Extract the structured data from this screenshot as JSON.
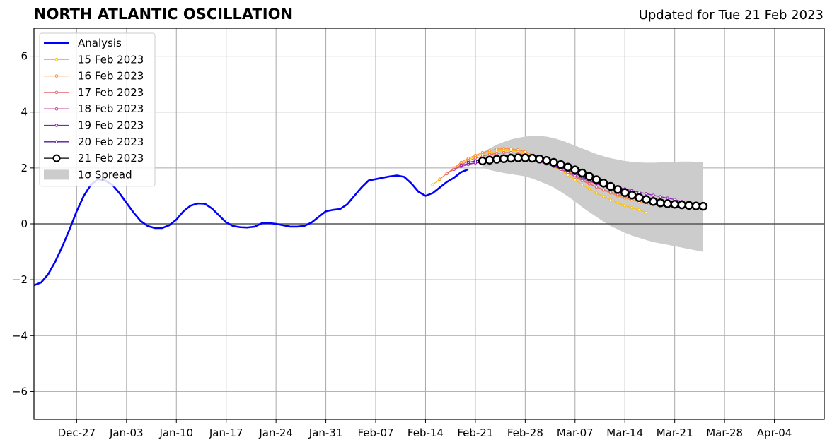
{
  "chart_data": {
    "type": "line",
    "title": "NORTH ATLANTIC OSCILLATION",
    "subtitle": "Updated for Tue 21 Feb 2023",
    "xlabel": "",
    "ylabel": "",
    "xlim": [
      "2022-12-21",
      "2023-04-11"
    ],
    "ylim": [
      -7,
      7
    ],
    "x_ticks": [
      {
        "date": "2022-12-27",
        "label": "Dec-27"
      },
      {
        "date": "2023-01-03",
        "label": "Jan-03"
      },
      {
        "date": "2023-01-10",
        "label": "Jan-10"
      },
      {
        "date": "2023-01-17",
        "label": "Jan-17"
      },
      {
        "date": "2023-01-24",
        "label": "Jan-24"
      },
      {
        "date": "2023-01-31",
        "label": "Jan-31"
      },
      {
        "date": "2023-02-07",
        "label": "Feb-07"
      },
      {
        "date": "2023-02-14",
        "label": "Feb-14"
      },
      {
        "date": "2023-02-21",
        "label": "Feb-21"
      },
      {
        "date": "2023-02-28",
        "label": "Feb-28"
      },
      {
        "date": "2023-03-07",
        "label": "Mar-07"
      },
      {
        "date": "2023-03-14",
        "label": "Mar-14"
      },
      {
        "date": "2023-03-21",
        "label": "Mar-21"
      },
      {
        "date": "2023-03-28",
        "label": "Mar-28"
      },
      {
        "date": "2023-04-04",
        "label": "Apr-04"
      }
    ],
    "y_ticks": [
      {
        "value": 6,
        "label": "6"
      },
      {
        "value": 4,
        "label": "4"
      },
      {
        "value": 2,
        "label": "2"
      },
      {
        "value": 0,
        "label": "0"
      },
      {
        "value": -2,
        "label": "−2"
      },
      {
        "value": -4,
        "label": "−4"
      },
      {
        "value": -6,
        "label": "−6"
      }
    ],
    "grid": true,
    "legend_position": "top-left",
    "analysis": {
      "name": "Analysis",
      "color": "#0000ff",
      "start_date": "2022-12-21",
      "values": [
        -2.2,
        -2.1,
        -1.8,
        -1.35,
        -0.8,
        -0.2,
        0.45,
        1.0,
        1.4,
        1.6,
        1.55,
        1.4,
        1.1,
        0.75,
        0.4,
        0.1,
        -0.08,
        -0.15,
        -0.15,
        -0.05,
        0.15,
        0.45,
        0.65,
        0.73,
        0.72,
        0.55,
        0.3,
        0.05,
        -0.08,
        -0.12,
        -0.13,
        -0.1,
        0.02,
        0.03,
        0.0,
        -0.05,
        -0.1,
        -0.1,
        -0.07,
        0.05,
        0.25,
        0.45,
        0.5,
        0.53,
        0.7,
        1.0,
        1.3,
        1.55,
        1.6,
        1.65,
        1.7,
        1.73,
        1.68,
        1.45,
        1.15,
        1.0,
        1.1,
        1.3,
        1.5,
        1.65,
        1.85,
        1.95
      ]
    },
    "forecasts": [
      {
        "name": "15 Feb 2023",
        "color": "#ffc000",
        "start_date": "2023-02-15",
        "values": [
          1.4,
          1.6,
          1.8,
          2.0,
          2.15,
          2.3,
          2.4,
          2.5,
          2.55,
          2.6,
          2.62,
          2.63,
          2.6,
          2.55,
          2.45,
          2.35,
          2.2,
          2.05,
          1.9,
          1.75,
          1.58,
          1.4,
          1.25,
          1.1,
          0.98,
          0.85,
          0.75,
          0.65,
          0.58,
          0.5,
          0.4
        ]
      },
      {
        "name": "16 Feb 2023",
        "color": "#fb8c3c",
        "start_date": "2023-02-16",
        "values": [
          1.6,
          1.8,
          2.0,
          2.2,
          2.35,
          2.45,
          2.55,
          2.62,
          2.67,
          2.7,
          2.68,
          2.65,
          2.58,
          2.5,
          2.4,
          2.28,
          2.15,
          2.02,
          1.88,
          1.72,
          1.58,
          1.45,
          1.32,
          1.2,
          1.1,
          1.0,
          0.92,
          0.85,
          0.78,
          0.72
        ]
      },
      {
        "name": "17 Feb 2023",
        "color": "#e8636f",
        "start_date": "2023-02-17",
        "values": [
          1.8,
          1.95,
          2.1,
          2.25,
          2.35,
          2.42,
          2.48,
          2.52,
          2.55,
          2.55,
          2.52,
          2.47,
          2.4,
          2.3,
          2.2,
          2.08,
          1.95,
          1.82,
          1.68,
          1.55,
          1.43,
          1.32,
          1.22,
          1.13,
          1.05,
          0.98,
          0.92,
          0.86,
          0.8,
          0.75
        ]
      },
      {
        "name": "18 Feb 2023",
        "color": "#c0449f",
        "start_date": "2023-02-18",
        "values": [
          1.95,
          2.05,
          2.12,
          2.18,
          2.22,
          2.26,
          2.3,
          2.33,
          2.35,
          2.35,
          2.33,
          2.28,
          2.22,
          2.14,
          2.05,
          1.95,
          1.84,
          1.73,
          1.62,
          1.52,
          1.43,
          1.35,
          1.27,
          1.2,
          1.13,
          1.07,
          1.01,
          0.96,
          0.91,
          0.86
        ]
      },
      {
        "name": "19 Feb 2023",
        "color": "#8c1fb4",
        "start_date": "2023-02-19",
        "values": [
          2.1,
          2.15,
          2.18,
          2.2,
          2.22,
          2.25,
          2.28,
          2.3,
          2.32,
          2.32,
          2.3,
          2.25,
          2.18,
          2.1,
          2.0,
          1.9,
          1.8,
          1.7,
          1.6,
          1.52,
          1.44,
          1.37,
          1.31,
          1.25,
          1.19,
          1.13,
          1.08,
          1.02,
          0.97,
          0.92,
          0.87,
          0.8
        ]
      },
      {
        "name": "20 Feb 2023",
        "color": "#4f1b9a",
        "start_date": "2023-02-20",
        "values": [
          2.2,
          2.25,
          2.3,
          2.35,
          2.38,
          2.4,
          2.42,
          2.43,
          2.42,
          2.38,
          2.32,
          2.24,
          2.14,
          2.03,
          1.92,
          1.8,
          1.68,
          1.56,
          1.45,
          1.35,
          1.26,
          1.18,
          1.1,
          1.03,
          0.97,
          0.91,
          0.86,
          0.81,
          0.77,
          0.73,
          0.7
        ]
      },
      {
        "name": "21 Feb 2023",
        "color": "#000000",
        "start_date": "2023-02-22",
        "values": [
          2.25,
          2.28,
          2.31,
          2.33,
          2.35,
          2.36,
          2.36,
          2.35,
          2.32,
          2.27,
          2.2,
          2.12,
          2.03,
          1.93,
          1.82,
          1.7,
          1.58,
          1.46,
          1.34,
          1.23,
          1.12,
          1.03,
          0.94,
          0.87,
          0.8,
          0.75,
          0.72,
          0.7,
          0.68,
          0.66,
          0.64,
          0.63
        ]
      }
    ],
    "spread": {
      "name": "1σ Spread",
      "color": "#cccccc",
      "start_date": "2023-02-22",
      "upper": [
        2.55,
        2.7,
        2.83,
        2.93,
        3.02,
        3.08,
        3.12,
        3.15,
        3.15,
        3.12,
        3.07,
        2.99,
        2.9,
        2.8,
        2.7,
        2.6,
        2.5,
        2.42,
        2.35,
        2.3,
        2.25,
        2.22,
        2.2,
        2.19,
        2.19,
        2.2,
        2.21,
        2.22,
        2.23,
        2.23,
        2.22,
        2.22
      ],
      "lower": [
        2.0,
        1.93,
        1.87,
        1.82,
        1.78,
        1.74,
        1.7,
        1.62,
        1.52,
        1.42,
        1.3,
        1.15,
        0.98,
        0.8,
        0.6,
        0.42,
        0.25,
        0.08,
        -0.08,
        -0.2,
        -0.32,
        -0.42,
        -0.5,
        -0.58,
        -0.65,
        -0.7,
        -0.75,
        -0.8,
        -0.85,
        -0.9,
        -0.95,
        -1.0
      ]
    }
  }
}
